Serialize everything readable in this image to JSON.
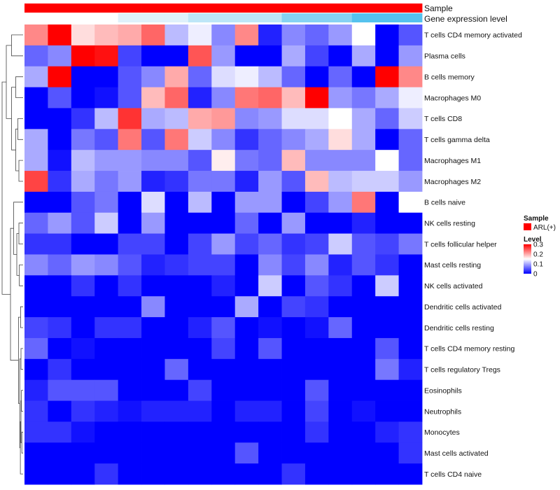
{
  "chart_data": {
    "type": "heatmap",
    "annotations": [
      {
        "label": "Sample"
      },
      {
        "label": "Gene expression level"
      }
    ],
    "sample_color": "#ff0000",
    "expression_gradient": [
      "#ffffff",
      "#dff1fb",
      "#bde6f7",
      "#86d2f3",
      "#55c2ee"
    ],
    "rows": [
      "T cells CD4 memory activated",
      "Plasma cells",
      "B cells memory",
      "Macrophages M0",
      "T cells CD8",
      "T cells gamma delta",
      "Macrophages M1",
      "Macrophages M2",
      "B cells naive",
      "NK cells resting",
      "T cells follicular helper",
      "Mast cells resting",
      "NK cells activated",
      "Dendritic cells activated",
      "Dendritic cells resting",
      "T cells CD4 memory resting",
      "T cells regulatory  Tregs",
      "Eosinophils",
      "Neutrophils",
      "Monocytes",
      "Mast cells activated",
      "T cells CD4 naive"
    ],
    "n_columns": 17,
    "values": [
      [
        0.22,
        0.3,
        0.17,
        0.19,
        0.2,
        0.24,
        0.11,
        0.14,
        0.08,
        0.22,
        0.02,
        0.08,
        0.06,
        0.09,
        0.15,
        0.0,
        0.05
      ],
      [
        0.06,
        0.08,
        0.3,
        0.29,
        0.04,
        0.0,
        0.0,
        0.25,
        0.09,
        0.0,
        0.0,
        0.1,
        0.04,
        0.0,
        0.1,
        0.0,
        0.09
      ],
      [
        0.1,
        0.3,
        0.0,
        0.0,
        0.05,
        0.08,
        0.2,
        0.06,
        0.13,
        0.14,
        0.11,
        0.06,
        0.0,
        0.06,
        0.0,
        0.3,
        0.22
      ],
      [
        0.0,
        0.05,
        0.0,
        0.01,
        0.05,
        0.19,
        0.24,
        0.02,
        0.08,
        0.23,
        0.24,
        0.19,
        0.3,
        0.09,
        0.07,
        0.1,
        0.14
      ],
      [
        0.0,
        0.0,
        0.03,
        0.11,
        0.27,
        0.1,
        0.11,
        0.2,
        0.21,
        0.08,
        0.09,
        0.13,
        0.13,
        0.15,
        0.1,
        0.06,
        0.12
      ],
      [
        0.1,
        0.0,
        0.07,
        0.05,
        0.23,
        0.05,
        0.23,
        0.12,
        0.08,
        0.03,
        0.06,
        0.08,
        0.1,
        0.17,
        0.1,
        0.0,
        0.06
      ],
      [
        0.1,
        0.01,
        0.11,
        0.09,
        0.09,
        0.08,
        0.08,
        0.05,
        0.16,
        0.07,
        0.06,
        0.19,
        0.08,
        0.08,
        0.08,
        0.15,
        0.06
      ],
      [
        0.26,
        0.03,
        0.1,
        0.07,
        0.09,
        0.02,
        0.03,
        0.07,
        0.07,
        0.02,
        0.09,
        0.05,
        0.19,
        0.11,
        0.12,
        0.12,
        0.09
      ],
      [
        0.0,
        0.0,
        0.05,
        0.07,
        0.0,
        0.13,
        0.0,
        0.11,
        0.0,
        0.09,
        0.09,
        0.0,
        0.04,
        0.09,
        0.23,
        0.0,
        0.15
      ],
      [
        0.06,
        0.09,
        0.05,
        0.12,
        0.0,
        0.09,
        0.0,
        0.0,
        0.0,
        0.06,
        0.0,
        0.09,
        0.0,
        0.0,
        0.02,
        0.0,
        0.0
      ],
      [
        0.03,
        0.03,
        0.0,
        0.0,
        0.04,
        0.04,
        0.0,
        0.04,
        0.09,
        0.04,
        0.06,
        0.03,
        0.04,
        0.12,
        0.05,
        0.04,
        0.07
      ],
      [
        0.08,
        0.06,
        0.09,
        0.08,
        0.05,
        0.02,
        0.03,
        0.04,
        0.04,
        0.0,
        0.08,
        0.04,
        0.08,
        0.02,
        0.05,
        0.03,
        0.0
      ],
      [
        0.0,
        0.0,
        0.03,
        0.0,
        0.03,
        0.0,
        0.0,
        0.0,
        0.02,
        0.0,
        0.12,
        0.0,
        0.05,
        0.03,
        0.0,
        0.12,
        0.0
      ],
      [
        0.0,
        0.0,
        0.0,
        0.0,
        0.0,
        0.08,
        0.0,
        0.0,
        0.0,
        0.1,
        0.0,
        0.04,
        0.03,
        0.0,
        0.0,
        0.0,
        0.0
      ],
      [
        0.04,
        0.03,
        0.0,
        0.03,
        0.03,
        0.0,
        0.0,
        0.02,
        0.05,
        0.0,
        0.01,
        0.0,
        0.01,
        0.06,
        0.0,
        0.0,
        0.0
      ],
      [
        0.06,
        0.0,
        0.01,
        0.0,
        0.0,
        0.0,
        0.0,
        0.0,
        0.04,
        0.0,
        0.05,
        0.0,
        0.0,
        0.0,
        0.0,
        0.05,
        0.0
      ],
      [
        0.0,
        0.03,
        0.0,
        0.0,
        0.0,
        0.0,
        0.06,
        0.0,
        0.0,
        0.0,
        0.0,
        0.0,
        0.0,
        0.0,
        0.0,
        0.07,
        0.02
      ],
      [
        0.02,
        0.05,
        0.05,
        0.05,
        0.0,
        0.0,
        0.0,
        0.04,
        0.0,
        0.0,
        0.0,
        0.0,
        0.05,
        0.0,
        0.0,
        0.0,
        0.0
      ],
      [
        0.03,
        0.0,
        0.03,
        0.02,
        0.01,
        0.02,
        0.02,
        0.02,
        0.0,
        0.02,
        0.02,
        0.0,
        0.04,
        0.0,
        0.01,
        0.0,
        0.0
      ],
      [
        0.03,
        0.03,
        0.01,
        0.0,
        0.0,
        0.0,
        0.0,
        0.0,
        0.0,
        0.0,
        0.0,
        0.0,
        0.03,
        0.0,
        0.0,
        0.02,
        0.03
      ],
      [
        0.0,
        0.0,
        0.0,
        0.0,
        0.0,
        0.0,
        0.0,
        0.0,
        0.0,
        0.05,
        0.0,
        0.0,
        0.0,
        0.0,
        0.0,
        0.0,
        0.03
      ],
      [
        0.0,
        0.0,
        0.0,
        0.03,
        0.0,
        0.0,
        0.0,
        0.0,
        0.0,
        0.0,
        0.0,
        0.03,
        0.0,
        0.0,
        0.0,
        0.0,
        0.0
      ]
    ],
    "dendrogram_order": [
      0,
      1,
      2,
      3,
      4,
      5,
      6,
      7,
      8,
      9,
      10,
      11,
      12,
      13,
      14,
      15,
      16,
      17,
      18,
      19,
      20,
      21
    ],
    "legend": {
      "sample_title": "Sample",
      "sample_entry": "ARL(+)",
      "level_title": "Level",
      "level_ticks": [
        0.3,
        0.2,
        0.1,
        0
      ],
      "level_tick_labels": [
        "0.3",
        "0.2",
        "0.1",
        "0"
      ],
      "level_range": [
        0,
        0.3
      ]
    },
    "colormap": {
      "low": "#0000ff",
      "mid": "#ffffff",
      "high": "#ff0000",
      "mid_value": 0.15
    }
  }
}
